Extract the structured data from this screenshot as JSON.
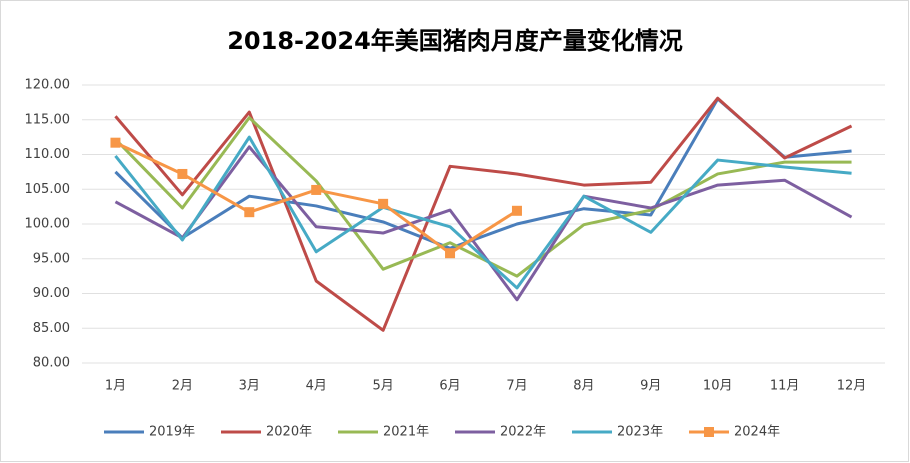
{
  "chart_data": {
    "type": "line",
    "title": "2018-2024年美国猪肉月度产量变化情况",
    "categories": [
      "1月",
      "2月",
      "3月",
      "4月",
      "5月",
      "6月",
      "7月",
      "8月",
      "9月",
      "10月",
      "11月",
      "12月"
    ],
    "ylim": [
      80,
      120
    ],
    "yticks": [
      {
        "value": 80,
        "label": "80.00"
      },
      {
        "value": 85,
        "label": "85.00"
      },
      {
        "value": 90,
        "label": "90.00"
      },
      {
        "value": 95,
        "label": "95.00"
      },
      {
        "value": 100,
        "label": "100.00"
      },
      {
        "value": 105,
        "label": "105.00"
      },
      {
        "value": 110,
        "label": "110.00"
      },
      {
        "value": 115,
        "label": "115.00"
      },
      {
        "value": 120,
        "label": "120.00"
      }
    ],
    "grid": true,
    "legend": "bottom",
    "series": [
      {
        "name": "2019年",
        "color": "#4a7ebb",
        "values": [
          107.5,
          98,
          104,
          102.6,
          100.3,
          96.5,
          100,
          102.2,
          101.3,
          118,
          109.6,
          110.5
        ]
      },
      {
        "name": "2020年",
        "color": "#be4b48",
        "values": [
          115.5,
          104.2,
          116.1,
          91.8,
          84.7,
          108.3,
          107.2,
          105.6,
          106,
          118.1,
          109.5,
          114.1
        ]
      },
      {
        "name": "2021年",
        "color": "#98b954",
        "values": [
          112.2,
          102.3,
          115.3,
          106.2,
          93.5,
          97.3,
          92.5,
          99.9,
          102,
          107.2,
          108.9,
          108.9
        ]
      },
      {
        "name": "2022年",
        "color": "#7d5fa0",
        "values": [
          103.2,
          98,
          111.1,
          99.6,
          98.7,
          102,
          89.1,
          104,
          102.3,
          105.6,
          106.3,
          101
        ]
      },
      {
        "name": "2023年",
        "color": "#46aac5",
        "values": [
          109.8,
          97.7,
          112.5,
          96,
          102.4,
          99.6,
          90.8,
          104,
          98.8,
          109.2,
          108.2,
          107.3
        ]
      },
      {
        "name": "2024年",
        "color": "#f79646",
        "marker": "square",
        "values": [
          111.7,
          107.2,
          101.7,
          104.9,
          102.9,
          95.8,
          101.9,
          null,
          null,
          null,
          null,
          null
        ]
      }
    ]
  }
}
